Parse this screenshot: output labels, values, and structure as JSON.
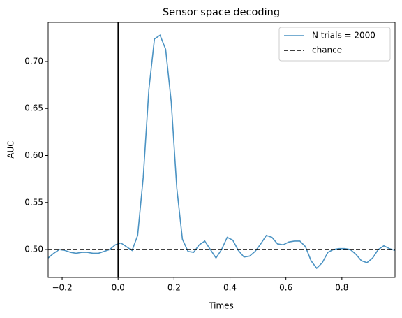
{
  "chart_data": {
    "type": "line",
    "title": "Sensor space decoding",
    "xlabel": "Times",
    "ylabel": "AUC",
    "x": [
      -0.25,
      -0.23,
      -0.21,
      -0.19,
      -0.17,
      -0.15,
      -0.13,
      -0.11,
      -0.09,
      -0.07,
      -0.05,
      -0.03,
      -0.01,
      0.01,
      0.03,
      0.05,
      0.07,
      0.09,
      0.11,
      0.13,
      0.15,
      0.17,
      0.19,
      0.21,
      0.23,
      0.25,
      0.27,
      0.29,
      0.31,
      0.33,
      0.35,
      0.37,
      0.39,
      0.41,
      0.43,
      0.45,
      0.47,
      0.49,
      0.51,
      0.53,
      0.55,
      0.57,
      0.59,
      0.61,
      0.63,
      0.65,
      0.67,
      0.69,
      0.71,
      0.73,
      0.75,
      0.77,
      0.79,
      0.81,
      0.83,
      0.85,
      0.87,
      0.89,
      0.91,
      0.93,
      0.95,
      0.97,
      0.99
    ],
    "series": [
      {
        "name": "N trials = 2000",
        "color": "#4b93c3",
        "values": [
          0.491,
          0.496,
          0.5,
          0.499,
          0.497,
          0.496,
          0.497,
          0.497,
          0.496,
          0.496,
          0.498,
          0.5,
          0.505,
          0.507,
          0.503,
          0.499,
          0.515,
          0.577,
          0.67,
          0.724,
          0.728,
          0.713,
          0.657,
          0.565,
          0.511,
          0.498,
          0.497,
          0.505,
          0.509,
          0.5,
          0.491,
          0.5,
          0.513,
          0.51,
          0.499,
          0.492,
          0.493,
          0.498,
          0.506,
          0.515,
          0.513,
          0.506,
          0.505,
          0.508,
          0.509,
          0.509,
          0.503,
          0.488,
          0.48,
          0.486,
          0.497,
          0.5,
          0.501,
          0.501,
          0.5,
          0.495,
          0.488,
          0.486,
          0.491,
          0.5,
          0.504,
          0.501,
          0.499
        ]
      },
      {
        "name": "chance",
        "color": "#000000",
        "hline": 0.5,
        "dashed": true
      }
    ],
    "vline": 0,
    "xlim": [
      -0.25,
      0.99
    ],
    "ylim": [
      0.4703,
      0.7416
    ],
    "xticks": [
      {
        "value": -0.2,
        "label": "−0.2"
      },
      {
        "value": 0,
        "label": "0.0"
      },
      0.2,
      0.4,
      0.6,
      0.8
    ],
    "yticks": [
      {
        "value": 0.5,
        "label": "0.50"
      },
      0.55,
      {
        "value": 0.6,
        "label": "0.60"
      },
      0.65,
      {
        "value": 0.7,
        "label": "0.70"
      }
    ],
    "legend": "upper right"
  }
}
